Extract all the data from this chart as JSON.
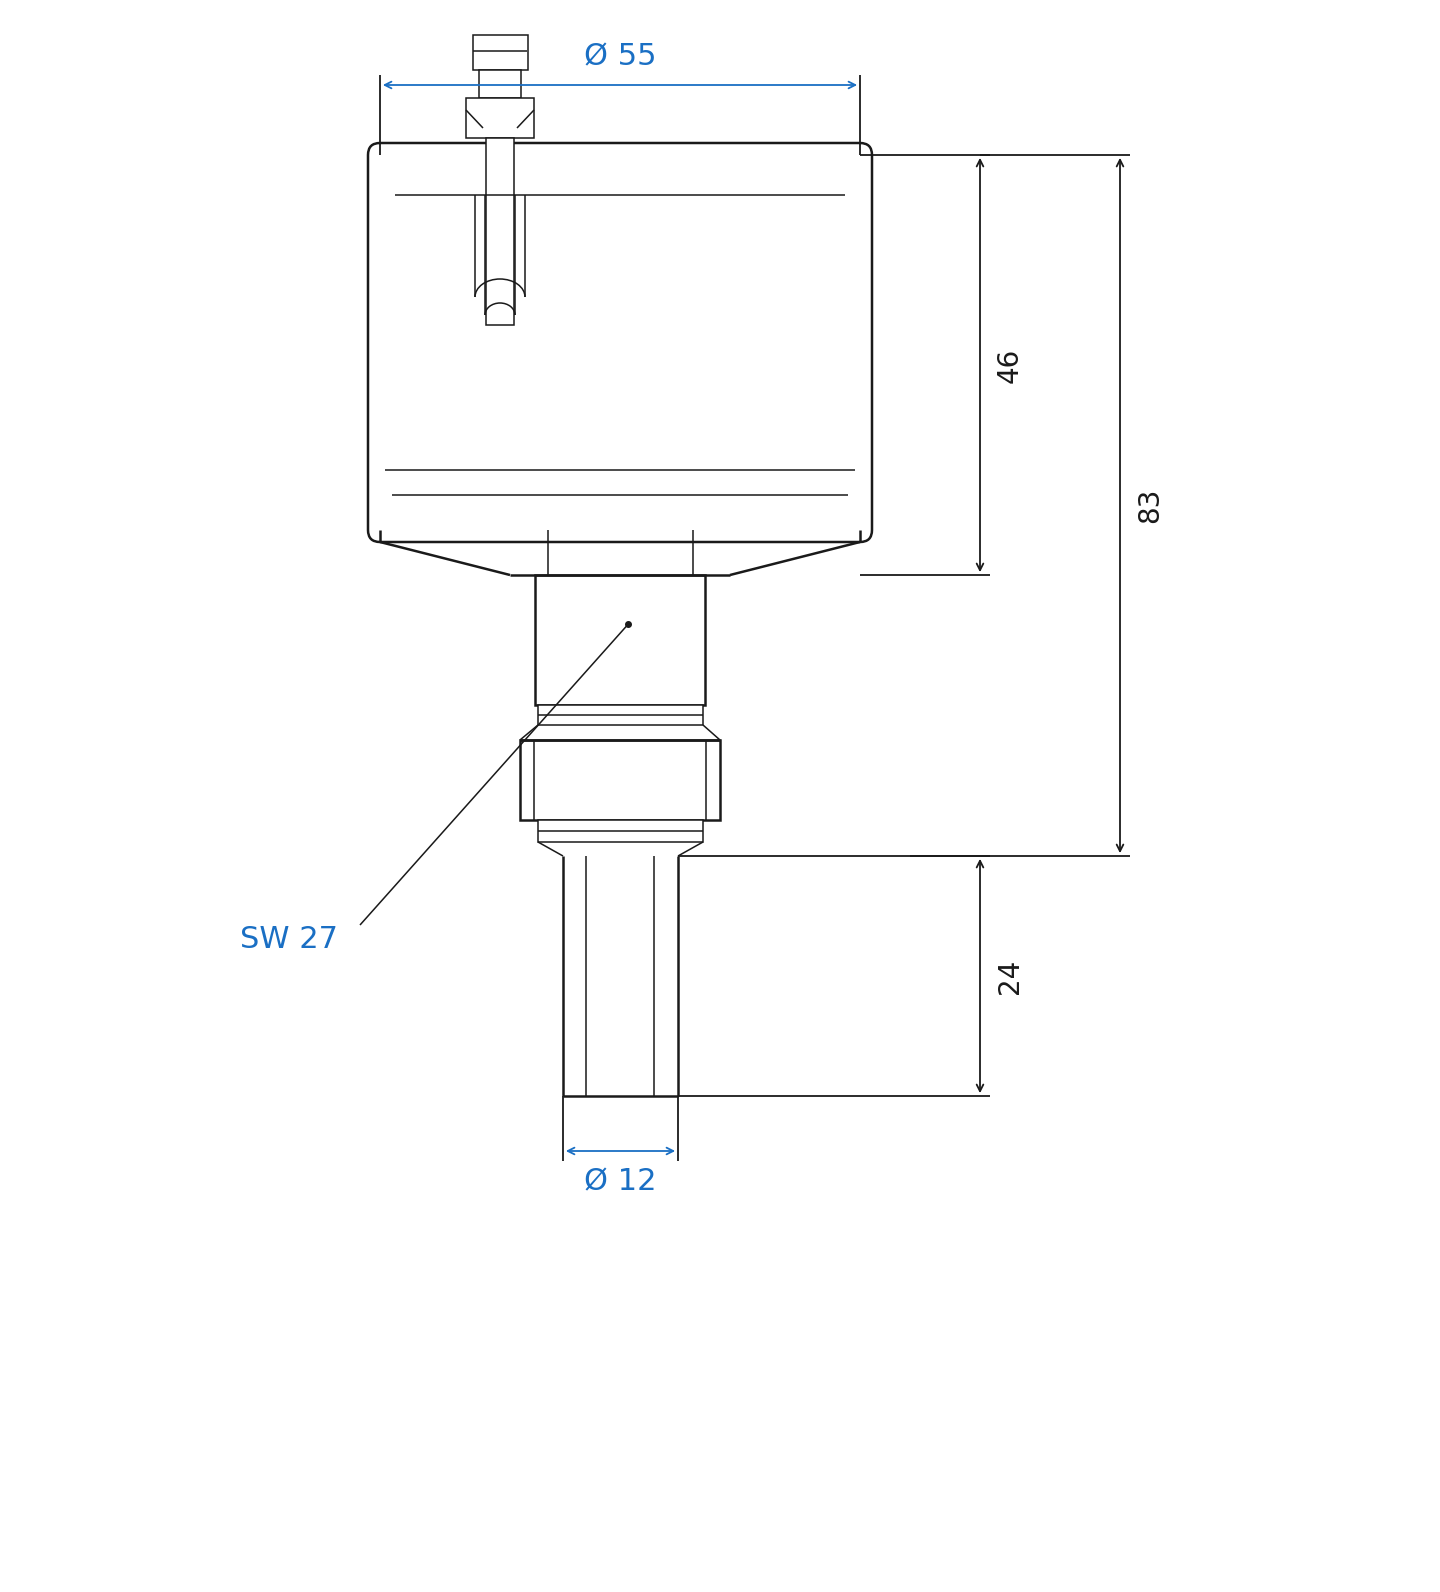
{
  "bg_color": "#ffffff",
  "line_color": "#1a1a1a",
  "dim_color": "#1a1a1a",
  "blue_dim_color": "#1a6fc4",
  "figsize": [
    14.4,
    15.92
  ],
  "dpi": 100,
  "annotations": {
    "phi55": "Ø 55",
    "phi12": "Ø 12",
    "dim46": "46",
    "dim83": "83",
    "dim24": "24",
    "sw27": "SW 27"
  },
  "lw_main": 1.8,
  "lw_thin": 1.1,
  "lw_dim": 1.3,
  "fs_dim": 20,
  "fs_blue": 22
}
